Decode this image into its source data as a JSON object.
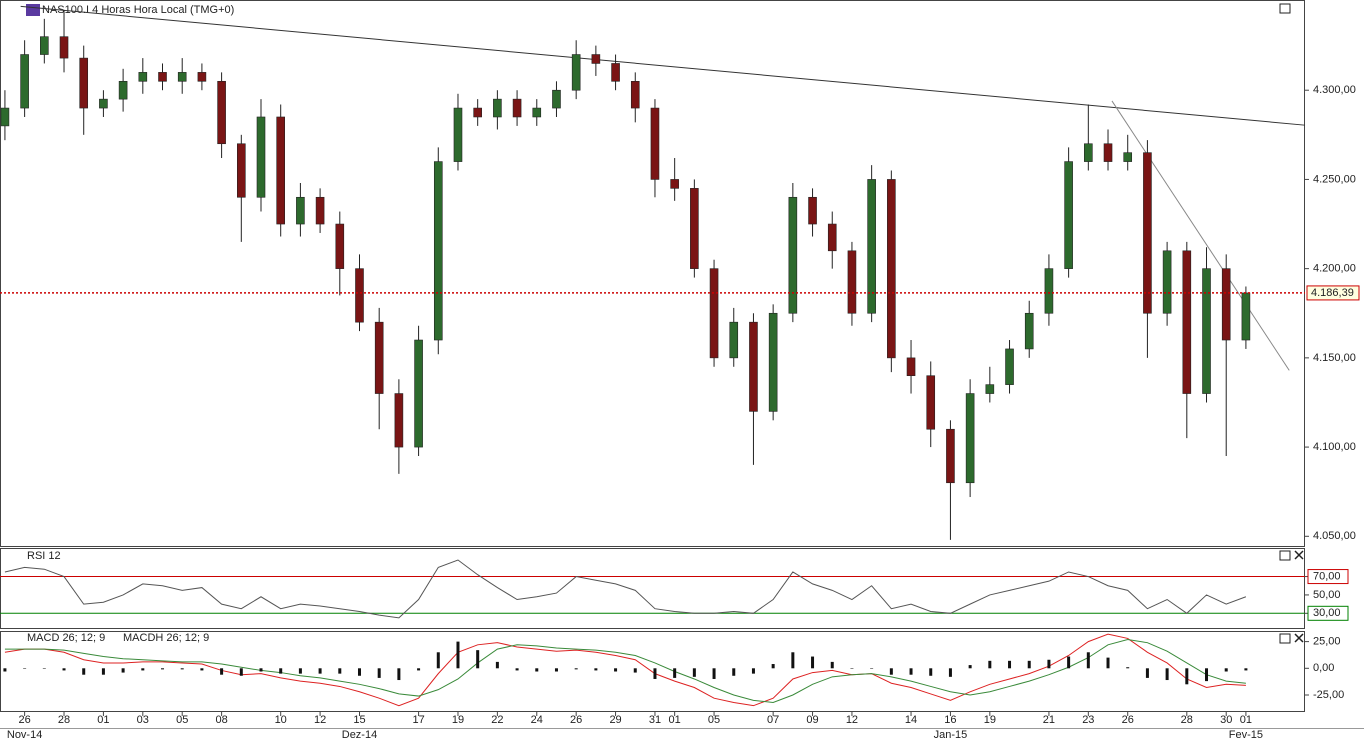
{
  "chart_data": [
    {
      "type": "candlestick",
      "title": "NAS100.I 4 Horas Hora Local (TMG+0)",
      "categories": [
        null,
        "26",
        null,
        "28",
        null,
        "01",
        null,
        "03",
        null,
        "05",
        null,
        "08",
        null,
        null,
        "10",
        null,
        "12",
        null,
        "15",
        null,
        null,
        "17",
        null,
        "19",
        null,
        "22",
        null,
        "24",
        null,
        "26",
        null,
        "29",
        null,
        "31",
        "01",
        null,
        "05",
        null,
        null,
        "07",
        null,
        "09",
        null,
        "12",
        null,
        null,
        "14",
        null,
        "16",
        null,
        "19",
        null,
        null,
        "21",
        null,
        "23",
        null,
        "26",
        null,
        null,
        "28",
        null,
        "30",
        "01"
      ],
      "months": [
        null,
        "Nov-14",
        null,
        null,
        null,
        null,
        null,
        null,
        null,
        null,
        null,
        null,
        null,
        null,
        null,
        null,
        null,
        null,
        "Dez-14",
        null,
        null,
        null,
        null,
        null,
        null,
        null,
        null,
        null,
        null,
        null,
        null,
        null,
        null,
        null,
        null,
        null,
        null,
        null,
        null,
        null,
        null,
        null,
        null,
        null,
        null,
        null,
        null,
        null,
        "Jan-15",
        null,
        null,
        null,
        null,
        null,
        null,
        null,
        null,
        null,
        null,
        null,
        null,
        null,
        null,
        "Fev-15"
      ],
      "open": [
        4280,
        4290,
        4320,
        4330,
        4318,
        4290,
        4295,
        4305,
        4310,
        4305,
        4310,
        4305,
        4270,
        4240,
        4285,
        4225,
        4240,
        4225,
        4200,
        4170,
        4130,
        4100,
        4160,
        4260,
        4290,
        4285,
        4295,
        4285,
        4290,
        4300,
        4320,
        4315,
        4305,
        4290,
        4250,
        4245,
        4200,
        4150,
        4170,
        4120,
        4175,
        4240,
        4225,
        4210,
        4175,
        4250,
        4150,
        4140,
        4110,
        4080,
        4130,
        4135,
        4155,
        4175,
        4200,
        4260,
        4270,
        4260,
        4265,
        4175,
        4210,
        4130,
        4200,
        4160
      ],
      "high": [
        4300,
        4328,
        4340,
        4345,
        4325,
        4300,
        4312,
        4318,
        4315,
        4318,
        4315,
        4310,
        4275,
        4295,
        4292,
        4248,
        4245,
        4232,
        4208,
        4178,
        4138,
        4168,
        4268,
        4298,
        4295,
        4300,
        4300,
        4295,
        4305,
        4328,
        4325,
        4320,
        4310,
        4295,
        4262,
        4250,
        4205,
        4178,
        4175,
        4180,
        4248,
        4245,
        4232,
        4215,
        4258,
        4255,
        4160,
        4148,
        4115,
        4138,
        4145,
        4160,
        4182,
        4208,
        4268,
        4292,
        4278,
        4275,
        4272,
        4215,
        4215,
        4212,
        4208,
        4190
      ],
      "low": [
        4272,
        4285,
        4315,
        4310,
        4275,
        4285,
        4288,
        4298,
        4300,
        4298,
        4300,
        4262,
        4215,
        4232,
        4218,
        4218,
        4220,
        4185,
        4165,
        4110,
        4085,
        4095,
        4152,
        4255,
        4280,
        4278,
        4280,
        4280,
        4285,
        4295,
        4308,
        4300,
        4282,
        4240,
        4238,
        4195,
        4145,
        4145,
        4090,
        4115,
        4170,
        4218,
        4200,
        4168,
        4170,
        4142,
        4130,
        4100,
        4048,
        4072,
        4125,
        4130,
        4150,
        4168,
        4195,
        4255,
        4255,
        4255,
        4150,
        4168,
        4105,
        4125,
        4095,
        4155
      ],
      "close": [
        4290,
        4320,
        4330,
        4318,
        4290,
        4295,
        4305,
        4310,
        4305,
        4310,
        4305,
        4270,
        4240,
        4285,
        4225,
        4240,
        4225,
        4200,
        4170,
        4130,
        4100,
        4160,
        4260,
        4290,
        4285,
        4295,
        4285,
        4290,
        4300,
        4320,
        4315,
        4305,
        4290,
        4250,
        4245,
        4200,
        4150,
        4170,
        4120,
        4175,
        4240,
        4225,
        4210,
        4175,
        4250,
        4150,
        4140,
        4110,
        4080,
        4130,
        4135,
        4155,
        4175,
        4200,
        4260,
        4270,
        4260,
        4265,
        4175,
        4210,
        4130,
        4200,
        4160,
        4186.39
      ],
      "up_color": "#2d6a2d",
      "down_color": "#7a1515",
      "xlim": [
        -0.25,
        66
      ],
      "ylim": [
        4044,
        4350
      ],
      "yticks": [
        {
          "value": 4050,
          "label": "4.050,00"
        },
        {
          "value": 4100,
          "label": "4.100,00"
        },
        {
          "value": 4150,
          "label": "4.150,00"
        },
        {
          "value": 4200,
          "label": "4.200,00"
        },
        {
          "value": 4250,
          "label": "4.250,00"
        },
        {
          "value": 4300,
          "label": "4.300,00"
        }
      ],
      "last": {
        "value": 4186.39,
        "label": "4.186,39",
        "color": "#cc0000"
      },
      "trendlines": [
        {
          "x": [
            0.8,
            66
          ],
          "y": [
            4347,
            4280.4
          ]
        },
        {
          "x": [
            56.2,
            65.2
          ],
          "y": [
            4294,
            4143
          ]
        }
      ]
    },
    {
      "type": "line",
      "ylim": [
        14,
        100
      ],
      "yticks": [
        {
          "value": 70,
          "label": "70,00",
          "color": "#cc0000"
        },
        {
          "value": 50,
          "label": "50,00"
        },
        {
          "value": 30,
          "label": "30,00",
          "color": "#008000"
        }
      ],
      "series": [
        {
          "name": "RSI 12",
          "color": "#555555",
          "values": [
            75,
            80,
            78,
            70,
            40,
            42,
            50,
            62,
            60,
            55,
            58,
            40,
            35,
            48,
            35,
            40,
            38,
            35,
            32,
            28,
            25,
            45,
            80,
            88,
            72,
            58,
            45,
            48,
            52,
            70,
            66,
            62,
            55,
            35,
            32,
            30,
            30,
            32,
            30,
            45,
            75,
            62,
            55,
            45,
            60,
            35,
            40,
            32,
            30,
            40,
            50,
            55,
            60,
            65,
            75,
            70,
            60,
            55,
            35,
            45,
            30,
            50,
            40,
            48
          ]
        }
      ]
    },
    {
      "type": "macd",
      "ylim": [
        -40,
        34
      ],
      "yticks": [
        {
          "value": 25,
          "label": "25,00"
        },
        {
          "value": 0,
          "label": "0,00"
        },
        {
          "value": -25,
          "label": "-25,00"
        }
      ],
      "series": [
        {
          "name": "MACD 26; 12; 9",
          "color": "#dd2222",
          "kind": "line",
          "values": [
            15,
            18,
            18,
            15,
            8,
            5,
            5,
            6,
            6,
            5,
            4,
            -2,
            -6,
            -5,
            -9,
            -12,
            -14,
            -17,
            -22,
            -28,
            -35,
            -28,
            -5,
            15,
            22,
            24,
            20,
            18,
            16,
            17,
            15,
            12,
            8,
            -5,
            -12,
            -18,
            -28,
            -32,
            -35,
            -28,
            -10,
            -4,
            -2,
            -6,
            -5,
            -14,
            -18,
            -24,
            -30,
            -22,
            -15,
            -10,
            -5,
            2,
            12,
            25,
            32,
            28,
            15,
            5,
            -10,
            -18,
            -15,
            -16
          ]
        },
        {
          "color": "#3a8a3a",
          "kind": "line",
          "values": [
            18,
            18,
            18,
            17,
            14,
            11,
            9,
            8,
            7,
            6,
            6,
            4,
            1,
            -2,
            -4,
            -7,
            -9,
            -12,
            -15,
            -19,
            -24,
            -26,
            -20,
            -10,
            5,
            18,
            22,
            21,
            19,
            18,
            17,
            15,
            12,
            5,
            -3,
            -10,
            -18,
            -25,
            -30,
            -32,
            -25,
            -15,
            -8,
            -6,
            -5,
            -8,
            -12,
            -17,
            -22,
            -25,
            -22,
            -17,
            -12,
            -6,
            1,
            10,
            22,
            27,
            24,
            16,
            5,
            -6,
            -12,
            -14
          ]
        },
        {
          "name": "MACDH 26; 12; 9",
          "color": "#111111",
          "kind": "bar",
          "values": [
            -3,
            0,
            0,
            -2,
            -6,
            -6,
            -4,
            -2,
            -1,
            -1,
            -2,
            -6,
            -7,
            -3,
            -5,
            -5,
            -5,
            -5,
            -7,
            -9,
            -11,
            -2,
            15,
            25,
            17,
            6,
            -2,
            -3,
            -3,
            -1,
            -2,
            -3,
            -4,
            -10,
            -9,
            -8,
            -10,
            -7,
            -5,
            4,
            15,
            11,
            6,
            0,
            0,
            -6,
            -6,
            -7,
            -8,
            3,
            7,
            7,
            7,
            8,
            11,
            15,
            10,
            1,
            -9,
            -11,
            -15,
            -12,
            -3,
            -2
          ]
        }
      ]
    }
  ]
}
